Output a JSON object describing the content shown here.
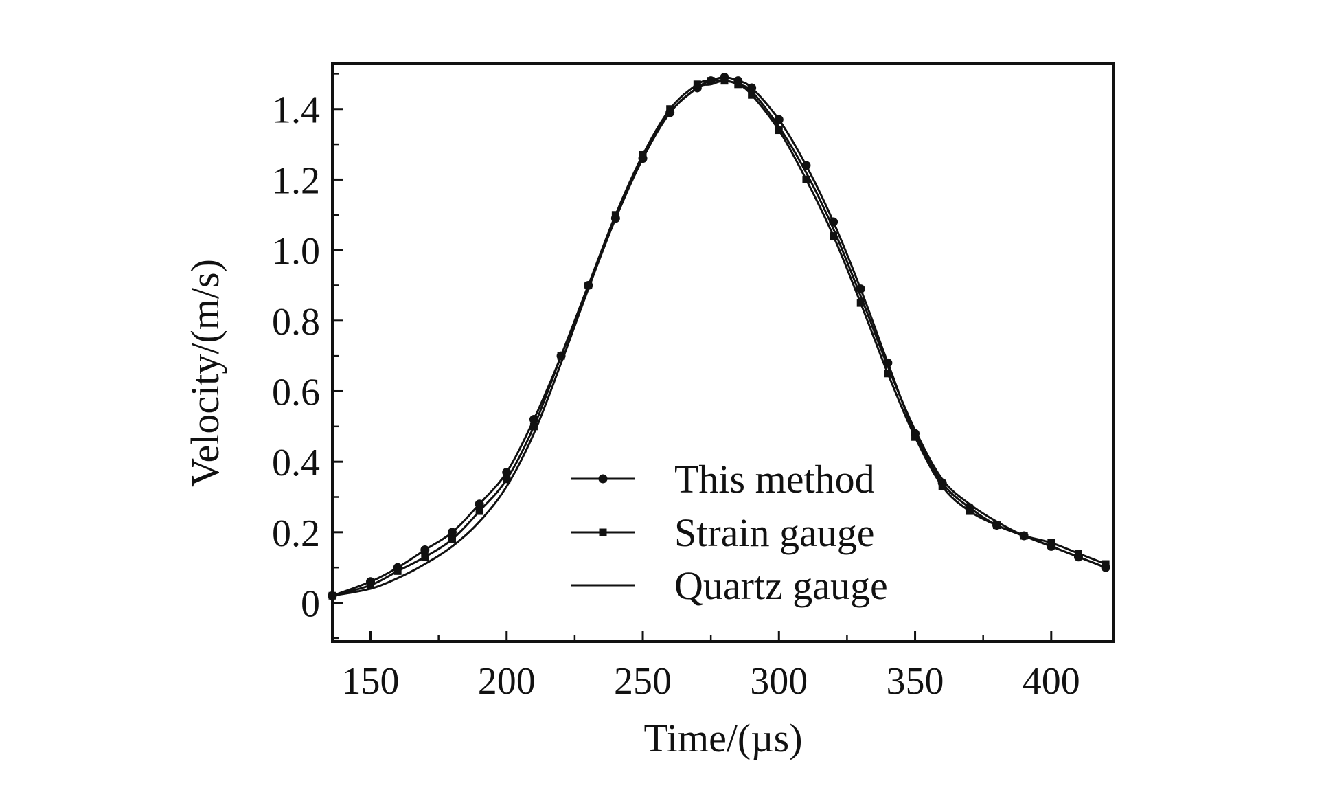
{
  "chart_data": {
    "type": "line",
    "title": "",
    "xlabel": "Time/(µs)",
    "ylabel": "Velocity/(m/s)",
    "xlim": [
      136,
      423
    ],
    "ylim": [
      -0.11,
      1.53
    ],
    "x_ticks": [
      150,
      200,
      250,
      300,
      350,
      400
    ],
    "x_tick_labels": [
      "150",
      "200",
      "250",
      "300",
      "350",
      "400"
    ],
    "y_ticks": [
      0,
      0.2,
      0.4,
      0.6,
      0.8,
      1.0,
      1.2,
      1.4
    ],
    "y_tick_labels": [
      "0",
      "0.2",
      "0.4",
      "0.6",
      "0.8",
      "1.0",
      "1.2",
      "1.4"
    ],
    "grid": false,
    "legend_position": "bottom-center",
    "colors": {
      "line": "#111111",
      "axis": "#111111",
      "background": "#ffffff"
    },
    "series": [
      {
        "name": "This method",
        "marker": "circle",
        "x": [
          136,
          150,
          160,
          170,
          180,
          190,
          200,
          210,
          220,
          230,
          240,
          250,
          260,
          270,
          275,
          280,
          285,
          290,
          300,
          310,
          320,
          330,
          340,
          350,
          360,
          370,
          380,
          390,
          400,
          410,
          420
        ],
        "y": [
          0.02,
          0.06,
          0.1,
          0.15,
          0.2,
          0.28,
          0.37,
          0.52,
          0.7,
          0.9,
          1.09,
          1.26,
          1.39,
          1.46,
          1.48,
          1.49,
          1.48,
          1.46,
          1.37,
          1.24,
          1.08,
          0.89,
          0.68,
          0.48,
          0.34,
          0.27,
          0.22,
          0.19,
          0.16,
          0.13,
          0.1
        ]
      },
      {
        "name": "Strain gauge",
        "marker": "square",
        "x": [
          136,
          150,
          160,
          170,
          180,
          190,
          200,
          210,
          220,
          230,
          240,
          250,
          260,
          270,
          275,
          280,
          285,
          290,
          300,
          310,
          320,
          330,
          340,
          350,
          360,
          370,
          380,
          390,
          400,
          410,
          420
        ],
        "y": [
          0.02,
          0.05,
          0.09,
          0.13,
          0.18,
          0.26,
          0.35,
          0.5,
          0.7,
          0.9,
          1.1,
          1.27,
          1.4,
          1.47,
          1.48,
          1.48,
          1.47,
          1.44,
          1.34,
          1.2,
          1.04,
          0.85,
          0.65,
          0.47,
          0.33,
          0.26,
          0.22,
          0.19,
          0.17,
          0.14,
          0.11
        ]
      },
      {
        "name": "Quartz gauge",
        "marker": "none",
        "x": [
          136,
          150,
          160,
          170,
          180,
          190,
          200,
          210,
          220,
          230,
          240,
          250,
          260,
          270,
          275,
          280,
          285,
          290,
          300,
          310,
          320,
          330,
          340,
          350,
          360,
          370,
          380,
          390,
          400,
          410,
          420
        ],
        "y": [
          0.02,
          0.04,
          0.07,
          0.11,
          0.16,
          0.23,
          0.33,
          0.48,
          0.68,
          0.89,
          1.09,
          1.26,
          1.39,
          1.46,
          1.47,
          1.48,
          1.47,
          1.45,
          1.35,
          1.22,
          1.06,
          0.87,
          0.67,
          0.49,
          0.35,
          0.28,
          0.23,
          0.19,
          0.16,
          0.13,
          0.1
        ]
      }
    ]
  }
}
